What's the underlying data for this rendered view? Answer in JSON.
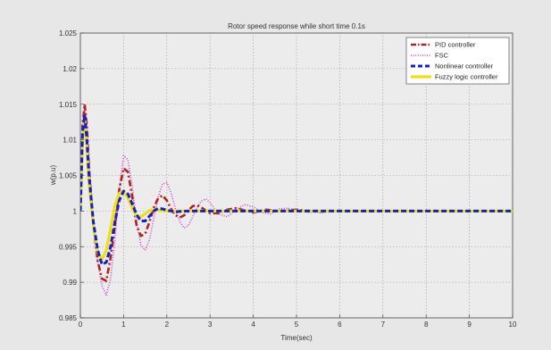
{
  "chart_data": {
    "type": "line",
    "title": "Rotor speed response while short time 0.1s",
    "xlabel": "Time(sec)",
    "ylabel": "w(p.u)",
    "xlim": [
      0,
      10
    ],
    "ylim": [
      0.985,
      1.025
    ],
    "x_ticks": [
      0,
      1,
      2,
      3,
      4,
      5,
      6,
      7,
      8,
      9,
      10
    ],
    "y_ticks": [
      0.985,
      0.99,
      0.995,
      1,
      1.005,
      1.01,
      1.015,
      1.02,
      1.025
    ],
    "x_tick_labels": [
      "0",
      "1",
      "2",
      "3",
      "4",
      "5",
      "6",
      "7",
      "8",
      "9",
      "10"
    ],
    "y_tick_labels": [
      "0.985",
      "0.99",
      "0.995",
      "1",
      "1.005",
      "1.01",
      "1.015",
      "1.02",
      "1.025"
    ],
    "grid": true,
    "legend_placement": "top-right",
    "series": [
      {
        "name": "PID controller",
        "color": "#b22222",
        "style": "dash-dot",
        "x": [
          0,
          0.05,
          0.1,
          0.15,
          0.2,
          0.3,
          0.4,
          0.5,
          0.6,
          0.7,
          0.8,
          0.9,
          1.0,
          1.1,
          1.2,
          1.3,
          1.4,
          1.5,
          1.6,
          1.7,
          1.8,
          1.9,
          2.0,
          2.1,
          2.2,
          2.3,
          2.4,
          2.5,
          2.6,
          2.7,
          2.8,
          2.9,
          3.0,
          3.2,
          3.4,
          3.6,
          3.8,
          4.0,
          4.3,
          4.6,
          5.0,
          5.5,
          6.0,
          7.0,
          8.0,
          9.0,
          10.0
        ],
        "y": [
          1.0,
          1.012,
          1.015,
          1.012,
          1.006,
          0.998,
          0.993,
          0.9905,
          0.9902,
          0.9935,
          0.998,
          1.003,
          1.006,
          1.0055,
          1.002,
          0.998,
          0.9965,
          0.9968,
          0.9985,
          1.0005,
          1.0018,
          1.0022,
          1.0015,
          1.0003,
          0.9994,
          0.9991,
          0.9994,
          1.0001,
          1.0007,
          1.0008,
          1.0005,
          1.0001,
          0.9997,
          0.9997,
          1.0002,
          1.0004,
          1.0001,
          0.9998,
          1.0002,
          1.0,
          1.0002,
          0.9999,
          1.0,
          1.0,
          1.0,
          1.0,
          1.0
        ]
      },
      {
        "name": "FSC",
        "color": "#cc44cc",
        "style": "dotted",
        "x": [
          0,
          0.05,
          0.1,
          0.15,
          0.2,
          0.3,
          0.4,
          0.5,
          0.6,
          0.7,
          0.8,
          0.9,
          1.0,
          1.1,
          1.2,
          1.3,
          1.4,
          1.5,
          1.6,
          1.7,
          1.8,
          1.9,
          2.0,
          2.1,
          2.2,
          2.3,
          2.4,
          2.5,
          2.6,
          2.7,
          2.8,
          2.9,
          3.0,
          3.1,
          3.2,
          3.4,
          3.6,
          3.8,
          4.0,
          4.2,
          4.4,
          4.6,
          4.8,
          5.0,
          5.3,
          5.6,
          6.0,
          7.0,
          8.0,
          9.0,
          10.0
        ],
        "y": [
          1.0,
          1.01,
          1.0145,
          1.012,
          1.007,
          0.998,
          0.993,
          0.9895,
          0.9882,
          0.9905,
          0.996,
          1.003,
          1.0078,
          1.0072,
          1.0035,
          0.9985,
          0.9952,
          0.9945,
          0.996,
          0.999,
          1.002,
          1.0038,
          1.004,
          1.0025,
          1.0003,
          0.9985,
          0.9976,
          0.998,
          0.9992,
          1.0005,
          1.0014,
          1.0017,
          1.0012,
          1.0003,
          0.9996,
          0.9992,
          1.0002,
          1.0009,
          1.0006,
          0.9998,
          0.9996,
          1.0003,
          1.0004,
          1.0001,
          0.9998,
          1.0001,
          1.0,
          1.0,
          1.0,
          1.0,
          1.0
        ]
      },
      {
        "name": "Nonlinear controller",
        "color": "#1020d0",
        "style": "dashed",
        "x": [
          0,
          0.05,
          0.1,
          0.15,
          0.2,
          0.3,
          0.4,
          0.5,
          0.6,
          0.7,
          0.8,
          0.9,
          1.0,
          1.1,
          1.2,
          1.3,
          1.4,
          1.5,
          1.6,
          1.7,
          1.8,
          1.9,
          2.0,
          2.2,
          2.5,
          3.0,
          4.0,
          5.0,
          6.0,
          7.0,
          8.0,
          9.0,
          10.0
        ],
        "y": [
          1.0,
          1.011,
          1.0135,
          1.01,
          1.005,
          0.9985,
          0.9945,
          0.9925,
          0.9928,
          0.995,
          0.9985,
          1.0015,
          1.0028,
          1.0024,
          1.001,
          0.9995,
          0.9986,
          0.9986,
          0.9993,
          1.0,
          1.0004,
          1.0003,
          1.0001,
          0.9999,
          1.0,
          1.0,
          1.0,
          1.0,
          1.0,
          1.0,
          1.0,
          1.0,
          1.0
        ]
      },
      {
        "name": "Fuzzy logic controller",
        "color": "#f0e010",
        "style": "solid",
        "x": [
          0,
          0.05,
          0.1,
          0.15,
          0.2,
          0.3,
          0.4,
          0.5,
          0.6,
          0.7,
          0.8,
          0.9,
          1.0,
          1.1,
          1.2,
          1.3,
          1.4,
          1.5,
          1.6,
          1.7,
          1.8,
          2.0,
          2.5,
          3.0,
          4.0,
          5.0,
          6.0,
          7.0,
          8.0,
          9.0,
          10.0
        ],
        "y": [
          1.0,
          1.01,
          1.013,
          1.009,
          1.004,
          0.998,
          0.9942,
          0.9932,
          0.9945,
          0.9975,
          1.0008,
          1.0025,
          1.0028,
          1.0018,
          1.0004,
          0.9993,
          0.9992,
          0.9996,
          1.0001,
          1.0002,
          1.0001,
          1.0,
          1.0,
          1.0,
          1.0,
          1.0,
          1.0,
          1.0,
          1.0,
          1.0,
          1.0
        ]
      }
    ]
  }
}
